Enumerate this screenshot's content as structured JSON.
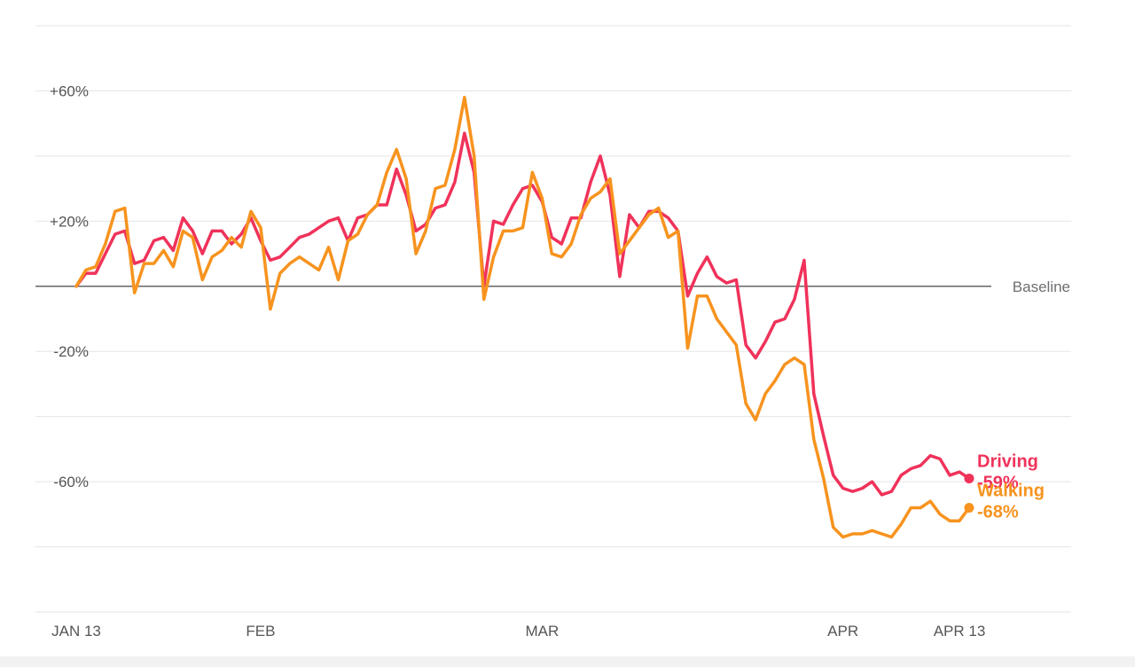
{
  "chart_data": {
    "type": "line",
    "ylim": [
      -100,
      80
    ],
    "grid": true,
    "y_ticks": [
      {
        "value": 60,
        "label": "+60%"
      },
      {
        "value": 20,
        "label": "+20%"
      },
      {
        "value": -20,
        "label": "-20%"
      },
      {
        "value": -60,
        "label": "-60%"
      }
    ],
    "x_ticks": [
      {
        "day": 0,
        "label": "JAN 13"
      },
      {
        "day": 19,
        "label": "FEB"
      },
      {
        "day": 48,
        "label": "MAR"
      },
      {
        "day": 79,
        "label": "APR"
      },
      {
        "day": 91,
        "label": "APR 13"
      }
    ],
    "baseline": {
      "value": 0,
      "label": "Baseline"
    },
    "series": [
      {
        "name": "Driving",
        "end_label": "-59%",
        "color": "#f0325a",
        "values": [
          0,
          4,
          4,
          10,
          16,
          17,
          7,
          8,
          14,
          15,
          11,
          21,
          17,
          10,
          17,
          17,
          13,
          16,
          21,
          14,
          8,
          9,
          12,
          15,
          16,
          18,
          20,
          21,
          14,
          21,
          22,
          25,
          25,
          36,
          28,
          17,
          19,
          24,
          25,
          32,
          47,
          35,
          0,
          20,
          19,
          25,
          30,
          31,
          26,
          15,
          13,
          21,
          21,
          32,
          40,
          28,
          3,
          22,
          18,
          23,
          23,
          21,
          17,
          -3,
          4,
          9,
          3,
          1,
          2,
          -18,
          -22,
          -17,
          -11,
          -10,
          -4,
          8,
          -33,
          -46,
          -58,
          -62,
          -63,
          -62,
          -60,
          -64,
          -63,
          -58,
          -56,
          -55,
          -52,
          -53,
          -58,
          -57,
          -59
        ],
        "marker": "end"
      },
      {
        "name": "Walking",
        "end_label": "-68%",
        "color": "#f7931e",
        "values": [
          0,
          5,
          6,
          13,
          23,
          24,
          -2,
          7,
          7,
          11,
          6,
          17,
          15,
          2,
          9,
          11,
          15,
          12,
          23,
          18,
          -7,
          4,
          7,
          9,
          7,
          5,
          12,
          2,
          14,
          16,
          22,
          25,
          35,
          42,
          33,
          10,
          17,
          30,
          31,
          42,
          58,
          40,
          -4,
          9,
          17,
          17,
          18,
          35,
          27,
          10,
          9,
          13,
          22,
          27,
          29,
          33,
          10,
          14,
          18,
          22,
          24,
          15,
          17,
          -19,
          -3,
          -3,
          -10,
          -14,
          -18,
          -36,
          -41,
          -33,
          -29,
          -24,
          -22,
          -24,
          -47,
          -59,
          -74,
          -77,
          -76,
          -76,
          -75,
          -76,
          -77,
          -73,
          -68,
          -68,
          -66,
          -70,
          -72,
          -72,
          -68
        ],
        "marker": "end"
      }
    ],
    "styles": {
      "grid_color": "#e5e5e5",
      "baseline_color": "#666666",
      "tick_text_color": "#555555"
    }
  }
}
